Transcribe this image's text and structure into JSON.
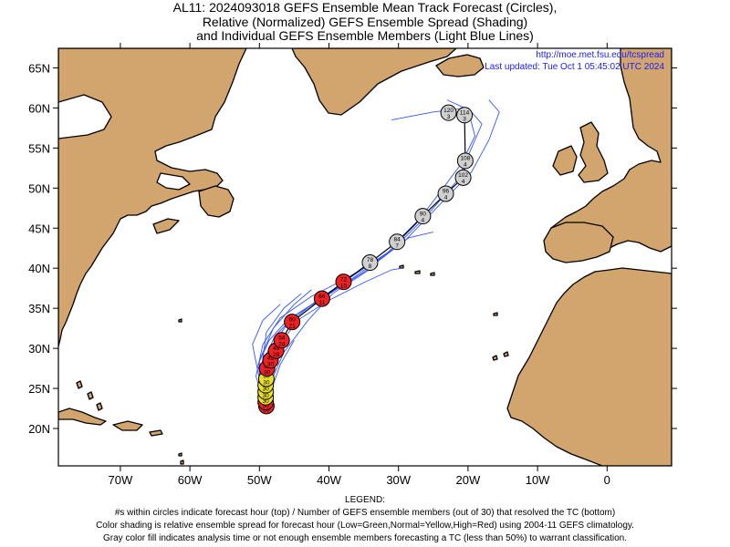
{
  "title_lines": [
    "AL11: 2024093018 GEFS Ensemble Mean Track Forecast (Circles),",
    "Relative (Normalized) GEFS Ensemble Spread (Shading)",
    "and Individual GEFS Ensemble Members (Light Blue Lines)"
  ],
  "credit": {
    "url": "http://moe.met.fsu.edu/tcspread",
    "updated": "Last updated: Tue Oct 1 05:45:02 UTC 2024"
  },
  "axes": {
    "lon_ticks": [
      "70W",
      "60W",
      "50W",
      "40W",
      "30W",
      "20W",
      "10W",
      "0"
    ],
    "lat_ticks": [
      "65N",
      "60N",
      "55N",
      "50N",
      "45N",
      "40N",
      "35N",
      "30N",
      "25N",
      "20N"
    ]
  },
  "colors": {
    "land": "#d2a56e",
    "ocean": "#ffffff",
    "member_line": "#3355ff",
    "mean_track": "#000000",
    "spread_high": "#ee2222",
    "spread_normal": "#e8e02a",
    "spread_low": "#22cc22",
    "gray": "#d0d0d0"
  },
  "track_points": [
    {
      "lon": -49.0,
      "lat": 22.8,
      "hour": "0",
      "members": "30",
      "color": "red"
    },
    {
      "lon": -49.1,
      "lat": 23.3,
      "hour": "6",
      "members": "30",
      "color": "red"
    },
    {
      "lon": -49.1,
      "lat": 23.9,
      "hour": "12",
      "members": "30",
      "color": "yellow"
    },
    {
      "lon": -49.1,
      "lat": 24.6,
      "hour": "18",
      "members": "30",
      "color": "yellow"
    },
    {
      "lon": -49.1,
      "lat": 25.4,
      "hour": "24",
      "members": "30",
      "color": "yellow"
    },
    {
      "lon": -49.0,
      "lat": 26.2,
      "hour": "30",
      "members": "30",
      "color": "yellow"
    },
    {
      "lon": -48.9,
      "lat": 27.5,
      "hour": "36",
      "members": "30",
      "color": "red"
    },
    {
      "lon": -48.4,
      "lat": 28.5,
      "hour": "42",
      "members": "30",
      "color": "red"
    },
    {
      "lon": -47.6,
      "lat": 29.7,
      "hour": "48",
      "members": "28",
      "color": "red"
    },
    {
      "lon": -46.8,
      "lat": 31.0,
      "hour": "54",
      "members": "24",
      "color": "red"
    },
    {
      "lon": -45.3,
      "lat": 33.3,
      "hour": "60",
      "members": "21",
      "color": "red"
    },
    {
      "lon": -41.0,
      "lat": 36.2,
      "hour": "66",
      "members": "11",
      "color": "red"
    },
    {
      "lon": -37.9,
      "lat": 38.3,
      "hour": "72",
      "members": "10",
      "color": "red"
    },
    {
      "lon": -34.1,
      "lat": 40.7,
      "hour": "78",
      "members": "8",
      "color": "gray"
    },
    {
      "lon": -30.2,
      "lat": 43.3,
      "hour": "84",
      "members": "7",
      "color": "gray"
    },
    {
      "lon": -26.5,
      "lat": 46.5,
      "hour": "90",
      "members": "4",
      "color": "gray"
    },
    {
      "lon": -23.2,
      "lat": 49.3,
      "hour": "96",
      "members": "4",
      "color": "gray"
    },
    {
      "lon": -20.7,
      "lat": 51.3,
      "hour": "102",
      "members": "4",
      "color": "gray"
    },
    {
      "lon": -20.4,
      "lat": 53.4,
      "hour": "108",
      "members": "4",
      "color": "gray"
    },
    {
      "lon": -20.5,
      "lat": 59.1,
      "hour": "114",
      "members": "3",
      "color": "gray"
    },
    {
      "lon": -22.8,
      "lat": 59.4,
      "hour": "120",
      "members": "3",
      "color": "gray"
    }
  ],
  "members": [
    [
      [
        -49.0,
        22.6
      ],
      [
        -49.6,
        25.0
      ],
      [
        -50.2,
        28.0
      ],
      [
        -48.6,
        31.0
      ],
      [
        -46.0,
        33.5
      ],
      [
        -41.0,
        36.3
      ],
      [
        -36.5,
        38.8
      ],
      [
        -31.0,
        42.2
      ],
      [
        -26.0,
        46.5
      ],
      [
        -21.5,
        51.0
      ],
      [
        -19.5,
        55.0
      ],
      [
        -18.0,
        58.0
      ],
      [
        -20.0,
        60.0
      ],
      [
        -25.0,
        59.5
      ],
      [
        -31.0,
        58.5
      ]
    ],
    [
      [
        -49.0,
        22.6
      ],
      [
        -49.3,
        25.5
      ],
      [
        -49.4,
        28.5
      ],
      [
        -47.8,
        31.5
      ],
      [
        -45.0,
        34.0
      ],
      [
        -40.5,
        36.5
      ],
      [
        -35.0,
        39.5
      ],
      [
        -29.0,
        43.5
      ],
      [
        -24.0,
        48.0
      ],
      [
        -19.5,
        52.0
      ],
      [
        -17.0,
        56.0
      ],
      [
        -15.5,
        59.5
      ],
      [
        -17.0,
        61.0
      ]
    ],
    [
      [
        -49.0,
        22.6
      ],
      [
        -49.5,
        26.0
      ],
      [
        -48.5,
        30.0
      ],
      [
        -46.0,
        33.0
      ],
      [
        -42.0,
        35.8
      ],
      [
        -37.0,
        38.8
      ],
      [
        -31.5,
        42.0
      ],
      [
        -27.5,
        45.5
      ],
      [
        -24.0,
        49.5
      ],
      [
        -21.0,
        53.0
      ],
      [
        -19.0,
        56.5
      ],
      [
        -20.0,
        59.8
      ],
      [
        -23.0,
        61.0
      ]
    ],
    [
      [
        -49.0,
        22.6
      ],
      [
        -50.5,
        26.5
      ],
      [
        -49.5,
        30.5
      ],
      [
        -47.0,
        33.8
      ],
      [
        -42.5,
        36.5
      ],
      [
        -38.0,
        38.5
      ],
      [
        -33.0,
        41.0
      ],
      [
        -28.5,
        43.8
      ],
      [
        -25.0,
        44.5
      ]
    ],
    [
      [
        -49.0,
        22.6
      ],
      [
        -48.8,
        26.0
      ],
      [
        -47.5,
        30.0
      ],
      [
        -44.5,
        33.5
      ],
      [
        -40.0,
        36.0
      ],
      [
        -35.0,
        38.2
      ],
      [
        -31.0,
        39.8
      ],
      [
        -29.5,
        40.0
      ]
    ],
    [
      [
        -49.0,
        22.6
      ],
      [
        -50.2,
        27.0
      ],
      [
        -51.0,
        30.5
      ],
      [
        -49.5,
        33.5
      ],
      [
        -47.0,
        35.5
      ]
    ],
    [
      [
        -49.0,
        22.6
      ],
      [
        -49.7,
        27.5
      ],
      [
        -49.0,
        32.0
      ],
      [
        -46.5,
        35.0
      ],
      [
        -44.0,
        36.8
      ]
    ],
    [
      [
        -49.0,
        22.6
      ],
      [
        -48.5,
        25.5
      ],
      [
        -46.5,
        29.5
      ],
      [
        -43.0,
        33.5
      ],
      [
        -39.5,
        36.8
      ],
      [
        -36.0,
        38.8
      ],
      [
        -33.5,
        40.2
      ]
    ],
    [
      [
        -49.0,
        22.6
      ],
      [
        -50.0,
        25.0
      ],
      [
        -50.0,
        28.5
      ],
      [
        -48.0,
        32.5
      ],
      [
        -45.0,
        35.5
      ],
      [
        -42.5,
        37.3
      ]
    ],
    [
      [
        -49.0,
        22.6
      ],
      [
        -48.2,
        25.0
      ],
      [
        -47.0,
        28.0
      ],
      [
        -45.0,
        31.0
      ]
    ]
  ],
  "legend": {
    "heading": "LEGEND:",
    "lines": [
      "#s within circles indicate forecast hour (top) / Number of GEFS ensemble members (out of 30) that resolved the TC (bottom)",
      "Color shading is relative ensemble spread for forecast hour (Low=Green,Normal=Yellow,High=Red) using 2004-11 GEFS climatology.",
      "Gray color fill indicates analysis time or not enough ensemble members forecasting a TC (less than 50%) to warrant classification."
    ]
  }
}
